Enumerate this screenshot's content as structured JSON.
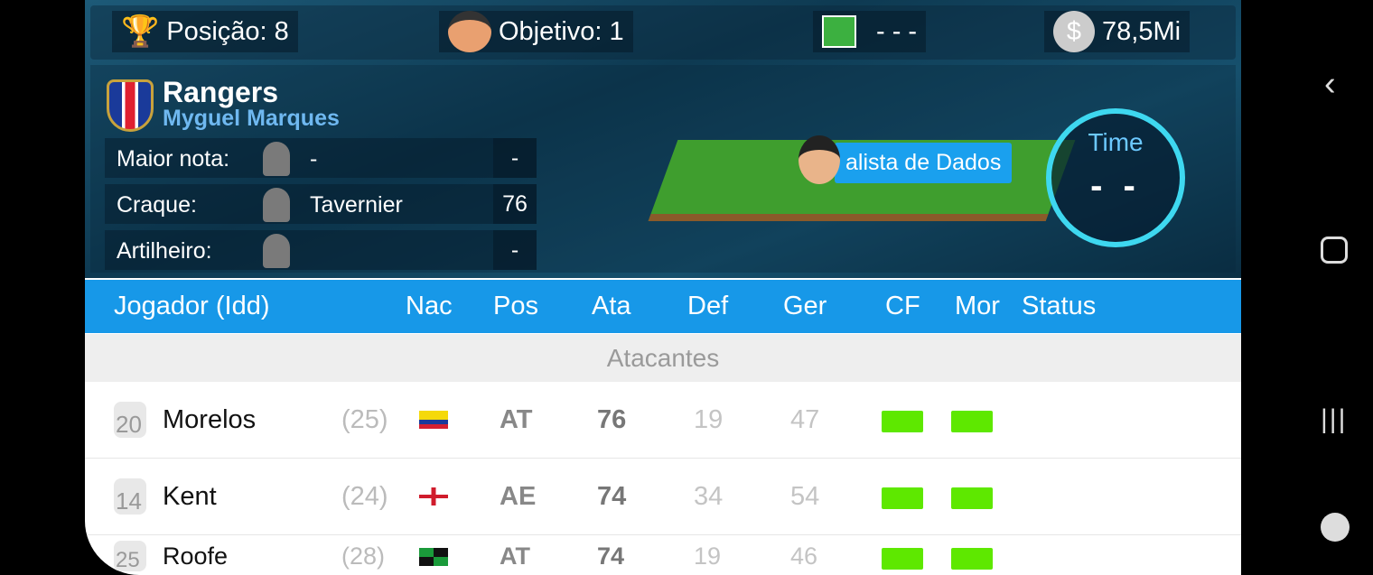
{
  "top": {
    "position": "Posição: 8",
    "objective": "Objetivo: 1",
    "field": "- - -",
    "money": "78,5Mi"
  },
  "team": {
    "name": "Rangers",
    "manager": "Myguel Marques"
  },
  "stats": [
    {
      "label": "Maior nota:",
      "player": "-",
      "value": "-"
    },
    {
      "label": "Craque:",
      "player": "Tavernier",
      "value": "76"
    },
    {
      "label": "Artilheiro:",
      "player": "",
      "value": "-"
    }
  ],
  "analyst": "alista de Dados",
  "time": {
    "label": "Time",
    "value": "- -"
  },
  "columns": [
    "Jogador (Idd)",
    "Nac",
    "Pos",
    "Ata",
    "Def",
    "Ger",
    "CF",
    "Mor",
    "Status"
  ],
  "section": "Atacantes",
  "players": [
    {
      "num": "20",
      "name": "Morelos",
      "age": "(25)",
      "nat": "colombia",
      "pos": "AT",
      "ata": "76",
      "def": "19",
      "ger": "47",
      "cf": 1,
      "mor": 1
    },
    {
      "num": "14",
      "name": "Kent",
      "age": "(24)",
      "nat": "england",
      "pos": "AE",
      "ata": "74",
      "def": "34",
      "ger": "54",
      "cf": 1,
      "mor": 1
    },
    {
      "num": "25",
      "name": "Roofe",
      "age": "(28)",
      "nat": "jamaica",
      "pos": "AT",
      "ata": "74",
      "def": "19",
      "ger": "46",
      "cf": 1,
      "mor": 1
    }
  ],
  "colors": {
    "header": "#1798e8",
    "bar": "#5ee800"
  }
}
